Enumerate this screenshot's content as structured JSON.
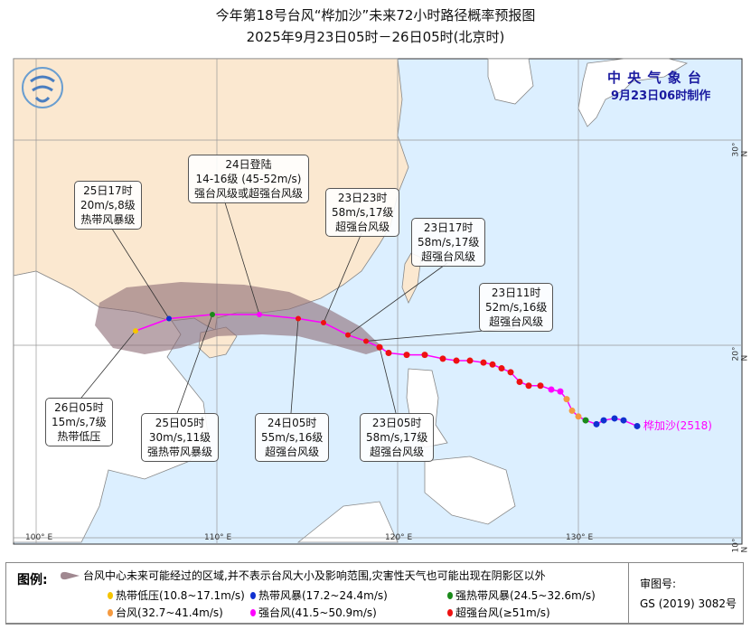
{
  "title": {
    "line1": "今年第18号台风“桦加沙”未来72小时路径概率预报图",
    "line2": "2025年9月23日05时－26日05时(北京时)"
  },
  "org": {
    "name": "中 央 气 象 台",
    "issued": "9月23日06时制作"
  },
  "typhoon_label": "桦加沙(2518)",
  "axes": {
    "lon_ticks": [
      "100° E",
      "110° E",
      "120° E",
      "130° E"
    ],
    "lat_ticks": [
      "30° N",
      "20° N",
      "10° N"
    ]
  },
  "colors": {
    "land_china": "#fbe8d0",
    "land_other": "#ffffff",
    "sea": "#dcefff",
    "cone": "#8c6a74",
    "track": "#ff00ff",
    "td": "#f5c400",
    "ts": "#1030d0",
    "sts": "#1a8a1a",
    "ty": "#f59a40",
    "sty": "#ff00ff",
    "superty": "#ee1111"
  },
  "forecast": [
    {
      "time": "23日05时",
      "lon": 119.0,
      "lat": 19.9,
      "lines": [
        "23日05时",
        "58m/s,17级",
        "超强台风级"
      ],
      "cat": "superty"
    },
    {
      "time": "23日11时",
      "lon": 118.25,
      "lat": 20.2,
      "lines": [
        "23日11时",
        "52m/s,16级",
        "超强台风级"
      ],
      "cat": "superty"
    },
    {
      "time": "23日17时",
      "lon": 117.25,
      "lat": 20.5,
      "lines": [
        "23日17时",
        "58m/s,17级",
        "超强台风级"
      ],
      "cat": "superty"
    },
    {
      "time": "23日23时",
      "lon": 115.9,
      "lat": 21.1,
      "lines": [
        "23日23时",
        "58m/s,17级",
        "超强台风级"
      ],
      "cat": "superty"
    },
    {
      "time": "24日05时",
      "lon": 114.5,
      "lat": 21.3,
      "lines": [
        "24日05时",
        "55m/s,16级",
        "超强台风级"
      ],
      "cat": "superty"
    },
    {
      "time": "24日登陆",
      "lon": 112.35,
      "lat": 21.5,
      "lines": [
        "24日登陆",
        "14-16级 (45-52m/s)",
        "强台风级或超强台风级"
      ],
      "cat": "sty"
    },
    {
      "time": "25日05时",
      "lon": 109.75,
      "lat": 21.5,
      "lines": [
        "25日05时",
        "30m/s,11级",
        "强热带风暴级"
      ],
      "cat": "sts"
    },
    {
      "time": "25日17时",
      "lon": 107.35,
      "lat": 21.3,
      "lines": [
        "25日17时",
        "20m/s,8级",
        "热带风暴级"
      ],
      "cat": "ts"
    },
    {
      "time": "26日05时",
      "lon": 105.5,
      "lat": 20.7,
      "lines": [
        "26日05时",
        "15m/s,7级",
        "热带低压"
      ],
      "cat": "td"
    }
  ],
  "past_track": [
    [
      133.25,
      15.8,
      "ts"
    ],
    [
      132.5,
      16.1,
      "ts"
    ],
    [
      132.0,
      16.2,
      "ts"
    ],
    [
      131.4,
      16.1,
      "ts"
    ],
    [
      131.0,
      15.9,
      "ts"
    ],
    [
      130.4,
      16.1,
      "sts"
    ],
    [
      130.0,
      16.3,
      "ty"
    ],
    [
      129.65,
      16.6,
      "ty"
    ],
    [
      129.35,
      17.2,
      "ty"
    ],
    [
      129.0,
      17.6,
      "sty"
    ],
    [
      128.5,
      17.7,
      "sty"
    ],
    [
      127.9,
      17.9,
      "superty"
    ],
    [
      127.25,
      17.9,
      "superty"
    ],
    [
      126.75,
      18.1,
      "superty"
    ],
    [
      126.25,
      18.6,
      "superty"
    ],
    [
      125.75,
      18.8,
      "superty"
    ],
    [
      125.25,
      19.0,
      "superty"
    ],
    [
      124.75,
      19.1,
      "superty"
    ],
    [
      124.0,
      19.2,
      "superty"
    ],
    [
      123.25,
      19.2,
      "superty"
    ],
    [
      122.5,
      19.3,
      "superty"
    ],
    [
      121.5,
      19.5,
      "superty"
    ],
    [
      120.5,
      19.5,
      "superty"
    ],
    [
      119.5,
      19.6,
      "superty"
    ],
    [
      119.0,
      19.9,
      "superty"
    ]
  ],
  "legend": {
    "title": "图例:",
    "cone_text": "台风中心未来可能经过的区域,并不表示台风大小及影响范围,灾害性天气也可能出现在阴影区以外",
    "items": [
      {
        "label": "热带低压(10.8~17.1m/s)",
        "cat": "td"
      },
      {
        "label": "热带风暴(17.2~24.4m/s)",
        "cat": "ts"
      },
      {
        "label": "强热带风暴(24.5~32.6m/s)",
        "cat": "sts"
      },
      {
        "label": "台风(32.7~41.4m/s)",
        "cat": "ty"
      },
      {
        "label": "强台风(41.5~50.9m/s)",
        "cat": "sty"
      },
      {
        "label": "超强台风(≥51m/s)",
        "cat": "superty"
      }
    ],
    "review_label": "审图号:",
    "review_no": "GS  (2019)  3082号"
  }
}
